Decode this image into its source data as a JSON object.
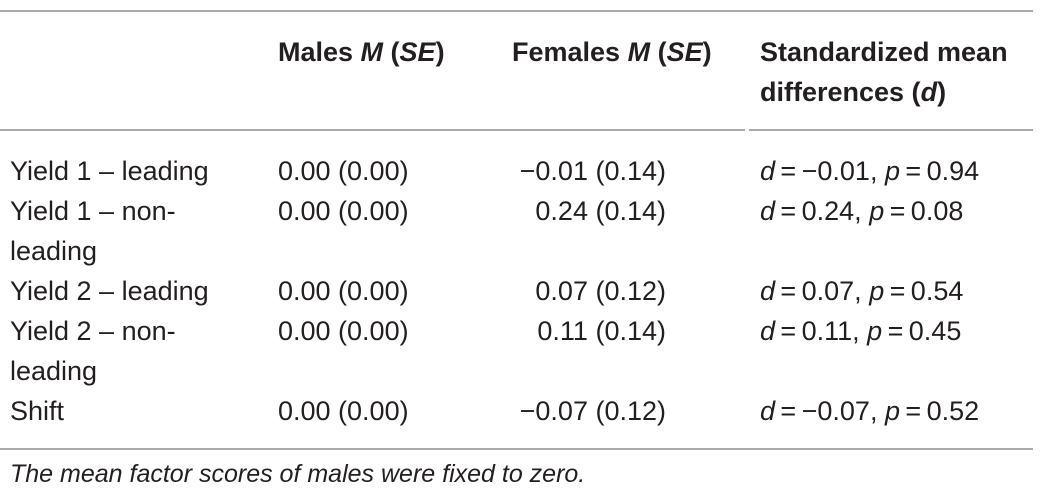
{
  "table": {
    "headers": {
      "col1_pre": "Males ",
      "col1_m": "M",
      "col1_open": " (",
      "col1_se": "SE",
      "col1_close": ")",
      "col2_pre": "Females ",
      "col2_m": "M",
      "col2_open": " (",
      "col2_se": "SE",
      "col2_close": ")",
      "col3_line1": "Standardized mean",
      "col3_line2_pre": "differences (",
      "col3_line2_d": "d",
      "col3_line2_close": ")"
    },
    "rows": [
      {
        "label_line1": "Yield 1 – leading",
        "label_line2": "",
        "males": "0.00 (0.00)",
        "females": "−0.01 (0.14)",
        "d_value": "−0.01",
        "p_value": "0.94"
      },
      {
        "label_line1": "Yield 1 – non-",
        "label_line2": "leading",
        "males": "0.00 (0.00)",
        "females": "0.24 (0.14)",
        "d_value": "0.24",
        "p_value": "0.08"
      },
      {
        "label_line1": "Yield 2 – leading",
        "label_line2": "",
        "males": "0.00 (0.00)",
        "females": "0.07 (0.12)",
        "d_value": "0.07",
        "p_value": "0.54"
      },
      {
        "label_line1": "Yield 2 – non-",
        "label_line2": "leading",
        "males": "0.00 (0.00)",
        "females": "0.11 (0.14)",
        "d_value": "0.11",
        "p_value": "0.45"
      },
      {
        "label_line1": "Shift",
        "label_line2": "",
        "males": "0.00 (0.00)",
        "females": "−0.07 (0.12)",
        "d_value": "−0.07",
        "p_value": "0.52"
      }
    ],
    "stat_d": "d",
    "stat_p": "p",
    "equals": " = ",
    "separator": ", "
  },
  "footnote": "The mean factor scores of males were fixed to zero.",
  "colors": {
    "text": "#231f20",
    "rule": "#a7a9ac"
  }
}
